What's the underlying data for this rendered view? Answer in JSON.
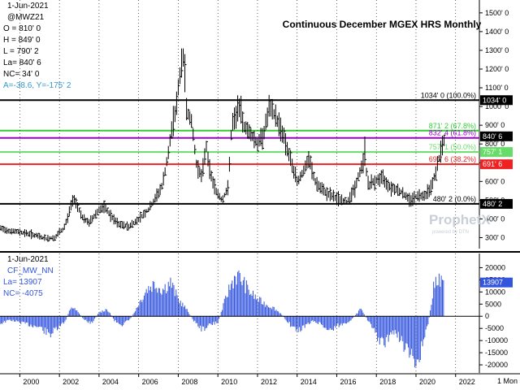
{
  "chart_data": [
    {
      "type": "bar",
      "subtype": "ohlc",
      "title": "Continuous December MGEX HRS Monthly",
      "info": {
        "date": "1-Jun-2021",
        "symbol": "@MWZ21",
        "open": "O = 810' 0",
        "high": "H = 849' 0",
        "low": "L = 790' 2",
        "last": "La= 840' 6",
        "net_change": "NC= 34' 0",
        "cursor": "A=-38.6, Y=-175' 2"
      },
      "ylim": [
        250,
        1560
      ],
      "y_ticks": [
        300,
        400,
        500,
        600,
        700,
        800,
        900,
        1000,
        1100,
        1200,
        1300,
        1400,
        1500
      ],
      "y_tick_labels": [
        "300' 0",
        "400' 0",
        "500' 0",
        "600' 0",
        "700' 0",
        "800' 0",
        "900' 0",
        "1000' 0",
        "1100' 0",
        "1200' 0",
        "1300' 0",
        "1400' 0",
        "1500' 0"
      ],
      "x_ticks": [
        2000,
        2002,
        2004,
        2006,
        2008,
        2010,
        2012,
        2014,
        2016,
        2018,
        2020,
        2022
      ],
      "x_tick_labels": [
        "2000",
        "2002",
        "2004",
        "2006",
        "2008",
        "2010",
        "2012",
        "2014",
        "2016",
        "2018",
        "2020",
        "2022"
      ],
      "xlim": [
        1999.0,
        2023.2
      ],
      "x_end_label": "1 Mon",
      "price_path": [
        [
          1999.0,
          350
        ],
        [
          1999.5,
          335
        ],
        [
          2000.0,
          330
        ],
        [
          2000.5,
          320
        ],
        [
          2001.0,
          305
        ],
        [
          2001.3,
          295
        ],
        [
          2001.8,
          300
        ],
        [
          2002.0,
          330
        ],
        [
          2002.2,
          345
        ],
        [
          2002.4,
          400
        ],
        [
          2002.6,
          480
        ],
        [
          2002.75,
          510
        ],
        [
          2002.9,
          470
        ],
        [
          2003.2,
          400
        ],
        [
          2003.5,
          380
        ],
        [
          2004.0,
          450
        ],
        [
          2004.3,
          460
        ],
        [
          2004.7,
          400
        ],
        [
          2005.0,
          370
        ],
        [
          2005.5,
          360
        ],
        [
          2005.9,
          390
        ],
        [
          2006.2,
          420
        ],
        [
          2006.5,
          450
        ],
        [
          2006.9,
          520
        ],
        [
          2007.2,
          580
        ],
        [
          2007.5,
          750
        ],
        [
          2007.7,
          900
        ],
        [
          2007.9,
          1000
        ],
        [
          2008.0,
          1100
        ],
        [
          2008.15,
          1200
        ],
        [
          2008.25,
          1250
        ],
        [
          2008.4,
          1000
        ],
        [
          2008.7,
          900
        ],
        [
          2008.9,
          700
        ],
        [
          2009.2,
          620
        ],
        [
          2009.4,
          800
        ],
        [
          2009.6,
          650
        ],
        [
          2009.9,
          550
        ],
        [
          2010.2,
          500
        ],
        [
          2010.5,
          560
        ],
        [
          2010.7,
          900
        ],
        [
          2010.9,
          940
        ],
        [
          2011.1,
          1000
        ],
        [
          2011.3,
          900
        ],
        [
          2011.7,
          850
        ],
        [
          2012.0,
          800
        ],
        [
          2012.3,
          850
        ],
        [
          2012.6,
          1000
        ],
        [
          2012.9,
          950
        ],
        [
          2013.3,
          850
        ],
        [
          2013.7,
          700
        ],
        [
          2014.0,
          600
        ],
        [
          2014.3,
          650
        ],
        [
          2014.6,
          720
        ],
        [
          2014.9,
          600
        ],
        [
          2015.2,
          560
        ],
        [
          2015.6,
          530
        ],
        [
          2016.0,
          510
        ],
        [
          2016.5,
          490
        ],
        [
          2016.9,
          560
        ],
        [
          2017.2,
          660
        ],
        [
          2017.4,
          720
        ],
        [
          2017.6,
          580
        ],
        [
          2017.9,
          600
        ],
        [
          2018.3,
          620
        ],
        [
          2018.7,
          570
        ],
        [
          2019.0,
          560
        ],
        [
          2019.3,
          540
        ],
        [
          2019.7,
          500
        ],
        [
          2020.0,
          520
        ],
        [
          2020.5,
          530
        ],
        [
          2020.8,
          580
        ],
        [
          2021.0,
          650
        ],
        [
          2021.3,
          780
        ],
        [
          2021.42,
          840.75
        ]
      ],
      "high_spikes": [
        [
          2008.2,
          1310
        ],
        [
          2008.3,
          1280
        ],
        [
          2011.0,
          1060
        ],
        [
          2012.7,
          1040
        ],
        [
          2017.4,
          840
        ],
        [
          2021.42,
          849
        ]
      ],
      "fib_levels": [
        {
          "label": "1034' 0 (100.0%)",
          "value": 1034.0,
          "tag": "1034' 0",
          "color": "#000000"
        },
        {
          "label": "871' 2 (67.8%)",
          "value": 871.25,
          "tag": null,
          "color": "#33cc33"
        },
        {
          "label": "832' 4 (61.8%)",
          "value": 832.5,
          "tag": null,
          "color": "#9900cc"
        },
        {
          "label": "757' 1 (50.0%)",
          "value": 757.125,
          "tag": "757' 1",
          "color": "#66dd66"
        },
        {
          "label": "691' 6 (38.2%)",
          "value": 691.75,
          "tag": "691' 6",
          "color": "#ee2222"
        },
        {
          "label": "480' 2 (0.0%)",
          "value": 480.25,
          "tag": "480' 2",
          "color": "#000000"
        }
      ],
      "last_tag": "840' 6",
      "last_value": 840.75,
      "watermark": "ProphetX",
      "watermark_sub": "powered by DTN"
    },
    {
      "type": "bar",
      "subtype": "histogram",
      "info": {
        "date": "1-Jun-2021",
        "series_name": "CF_MW_NN",
        "last": "La= 13907",
        "net_change": "NC= -4075"
      },
      "ylim": [
        -23000,
        25500
      ],
      "y_ticks": [
        -20000,
        -15000,
        -10000,
        -5000,
        0,
        5000,
        10000,
        15000,
        20000
      ],
      "y_tick_labels": [
        "-20000",
        "-15000",
        "-10000",
        "-5000",
        "0",
        "5000",
        "10000",
        "15000",
        "20000"
      ],
      "last_tag": "13907",
      "last_value": 13907,
      "bar_color": "#3355dd",
      "series": [
        {
          "name": "CF_MW_NN",
          "points": [
            [
              1999.0,
              -3000
            ],
            [
              1999.5,
              -1500
            ],
            [
              2000.0,
              -2500
            ],
            [
              2000.5,
              -3500
            ],
            [
              2001.0,
              -4500
            ],
            [
              2001.5,
              -7500
            ],
            [
              2002.0,
              -4500
            ],
            [
              2002.3,
              -2000
            ],
            [
              2002.6,
              4000
            ],
            [
              2002.9,
              2000
            ],
            [
              2003.2,
              -1000
            ],
            [
              2003.6,
              -3000
            ],
            [
              2004.0,
              1500
            ],
            [
              2004.4,
              3000
            ],
            [
              2004.8,
              -2000
            ],
            [
              2005.2,
              -3500
            ],
            [
              2005.6,
              -1000
            ],
            [
              2006.0,
              5000
            ],
            [
              2006.4,
              11000
            ],
            [
              2006.8,
              13500
            ],
            [
              2007.2,
              11000
            ],
            [
              2007.6,
              14000
            ],
            [
              2008.0,
              7000
            ],
            [
              2008.4,
              3000
            ],
            [
              2008.8,
              -2000
            ],
            [
              2009.2,
              -5500
            ],
            [
              2009.6,
              -3500
            ],
            [
              2010.0,
              -2500
            ],
            [
              2010.3,
              5000
            ],
            [
              2010.6,
              12000
            ],
            [
              2010.9,
              17000
            ],
            [
              2011.2,
              15000
            ],
            [
              2011.6,
              10000
            ],
            [
              2012.0,
              7000
            ],
            [
              2012.4,
              5000
            ],
            [
              2012.8,
              3500
            ],
            [
              2013.2,
              1000
            ],
            [
              2013.6,
              -3000
            ],
            [
              2014.0,
              -6000
            ],
            [
              2014.4,
              -4000
            ],
            [
              2014.8,
              -2000
            ],
            [
              2015.2,
              -3000
            ],
            [
              2015.6,
              -6000
            ],
            [
              2016.0,
              -4000
            ],
            [
              2016.4,
              -3000
            ],
            [
              2016.8,
              -1000
            ],
            [
              2017.2,
              3000
            ],
            [
              2017.6,
              -2000
            ],
            [
              2018.0,
              -8000
            ],
            [
              2018.4,
              -12000
            ],
            [
              2018.8,
              -6000
            ],
            [
              2019.2,
              -9000
            ],
            [
              2019.6,
              -15000
            ],
            [
              2020.0,
              -19500
            ],
            [
              2020.3,
              -13000
            ],
            [
              2020.6,
              -4000
            ],
            [
              2020.9,
              12000
            ],
            [
              2021.1,
              17000
            ],
            [
              2021.25,
              14000
            ],
            [
              2021.42,
              13907
            ]
          ]
        }
      ]
    }
  ]
}
